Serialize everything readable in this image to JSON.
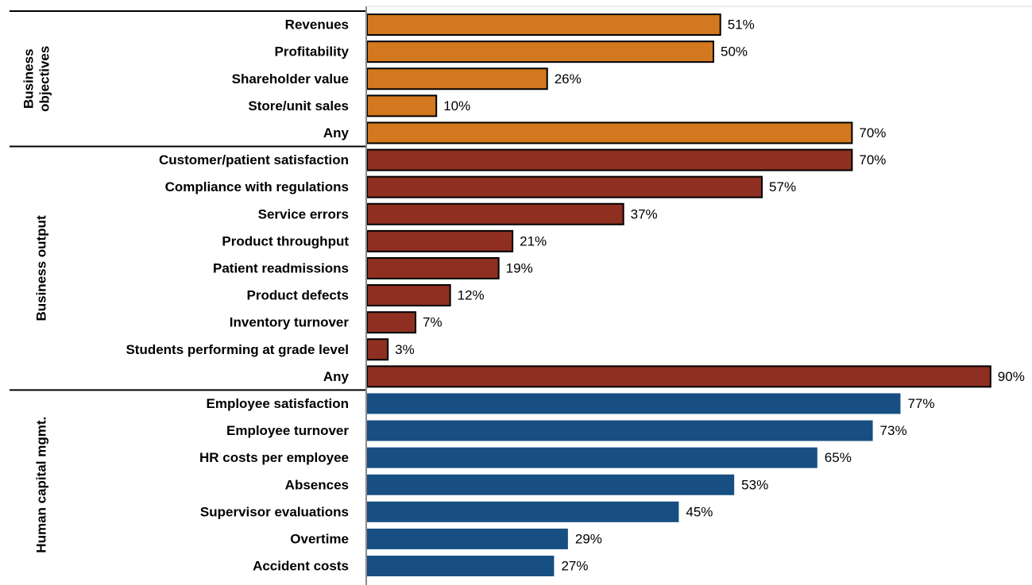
{
  "chart_data": {
    "type": "bar",
    "orientation": "horizontal",
    "title": "",
    "xlabel": "",
    "ylabel": "",
    "xlim": [
      0,
      100
    ],
    "value_suffix": "%",
    "grid": false,
    "legend": "none",
    "groups": [
      {
        "name": "Business objectives",
        "name_lines": [
          "Business",
          "objectives"
        ],
        "color": "#D2781E",
        "bar_outline": "#000000",
        "items": [
          {
            "label": "Revenues",
            "value": 51
          },
          {
            "label": "Profitability",
            "value": 50
          },
          {
            "label": "Shareholder value",
            "value": 26
          },
          {
            "label": "Store/unit sales",
            "value": 10
          },
          {
            "label": "Any",
            "value": 70
          }
        ]
      },
      {
        "name": "Business output",
        "name_lines": [
          "Business output"
        ],
        "color": "#8E2F21",
        "bar_outline": "#000000",
        "items": [
          {
            "label": "Customer/patient satisfaction",
            "value": 70
          },
          {
            "label": "Compliance with regulations",
            "value": 57
          },
          {
            "label": "Service errors",
            "value": 37
          },
          {
            "label": "Product throughput",
            "value": 21
          },
          {
            "label": "Patient readmissions",
            "value": 19
          },
          {
            "label": "Product defects",
            "value": 12
          },
          {
            "label": "Inventory turnover",
            "value": 7
          },
          {
            "label": "Students performing at grade level",
            "value": 3
          },
          {
            "label": "Any",
            "value": 90
          }
        ]
      },
      {
        "name": "Human capital mgmt.",
        "name_lines": [
          "Human capital mgmt."
        ],
        "color": "#174F82",
        "bar_outline": "none",
        "items": [
          {
            "label": "Employee satisfaction",
            "value": 77
          },
          {
            "label": "Employee turnover",
            "value": 73
          },
          {
            "label": "HR costs per employee",
            "value": 65
          },
          {
            "label": "Absences",
            "value": 53
          },
          {
            "label": "Supervisor evaluations",
            "value": 45
          },
          {
            "label": "Overtime",
            "value": 29
          },
          {
            "label": "Accident costs",
            "value": 27
          }
        ]
      }
    ]
  }
}
